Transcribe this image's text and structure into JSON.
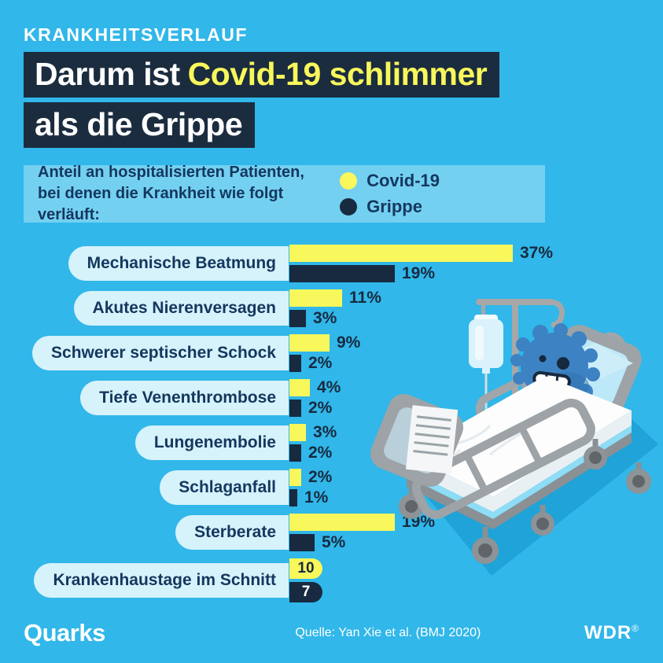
{
  "header": {
    "kicker": "KRANKHEITSVERLAUF",
    "title_line1_white": "Darum ist",
    "title_line1_yellow": "Covid-19 schlimmer",
    "title_line2": "als die Grippe"
  },
  "legend": {
    "caption_line1": "Anteil an hospitalisierten Patienten,",
    "caption_line2": "bei denen die Krankheit wie folgt verläuft:",
    "items": [
      {
        "label": "Covid-19",
        "color": "#f8f75b"
      },
      {
        "label": "Grippe",
        "color": "#172a40"
      }
    ]
  },
  "chart_data": {
    "type": "bar",
    "orientation": "horizontal",
    "title": "Anteil an hospitalisierten Patienten, bei denen die Krankheit wie folgt verläuft",
    "categories": [
      "Mechanische Beatmung",
      "Akutes Nierenversagen",
      "Schwerer septischer Schock",
      "Tiefe Venenthrombose",
      "Lungenembolie",
      "Schlaganfall",
      "Sterberate",
      "Krankenhaustage im Schnitt"
    ],
    "series": [
      {
        "name": "Covid-19",
        "color": "#f8f75b",
        "values": [
          37,
          11,
          9,
          4,
          3,
          2,
          19,
          10
        ],
        "labels": [
          "37%",
          "11%",
          "9%",
          "4%",
          "3%",
          "2%",
          "19%",
          "10"
        ]
      },
      {
        "name": "Grippe",
        "color": "#172a40",
        "values": [
          19,
          3,
          2,
          2,
          2,
          1,
          5,
          7
        ],
        "labels": [
          "19%",
          "3%",
          "2%",
          "2%",
          "2%",
          "1%",
          "5%",
          "7"
        ]
      }
    ],
    "units": {
      "default": "%",
      "Krankenhaustage im Schnitt": "Tage"
    },
    "inline_label_rows": [
      7
    ],
    "legend_position": "top",
    "grid": false,
    "xlim": [
      0,
      40
    ]
  },
  "colors": {
    "background": "#31b7e9",
    "title_box": "#1b2c3f",
    "highlight_yellow": "#f8f75b",
    "navy": "#172a40",
    "label_pill": "#d6f2fb",
    "legend_band": "#74d0f1"
  },
  "footer": {
    "brand": "Quarks",
    "source": "Quelle: Yan Xie et al. (BMJ 2020)",
    "network_name": "WDR",
    "network_mark": "®"
  }
}
